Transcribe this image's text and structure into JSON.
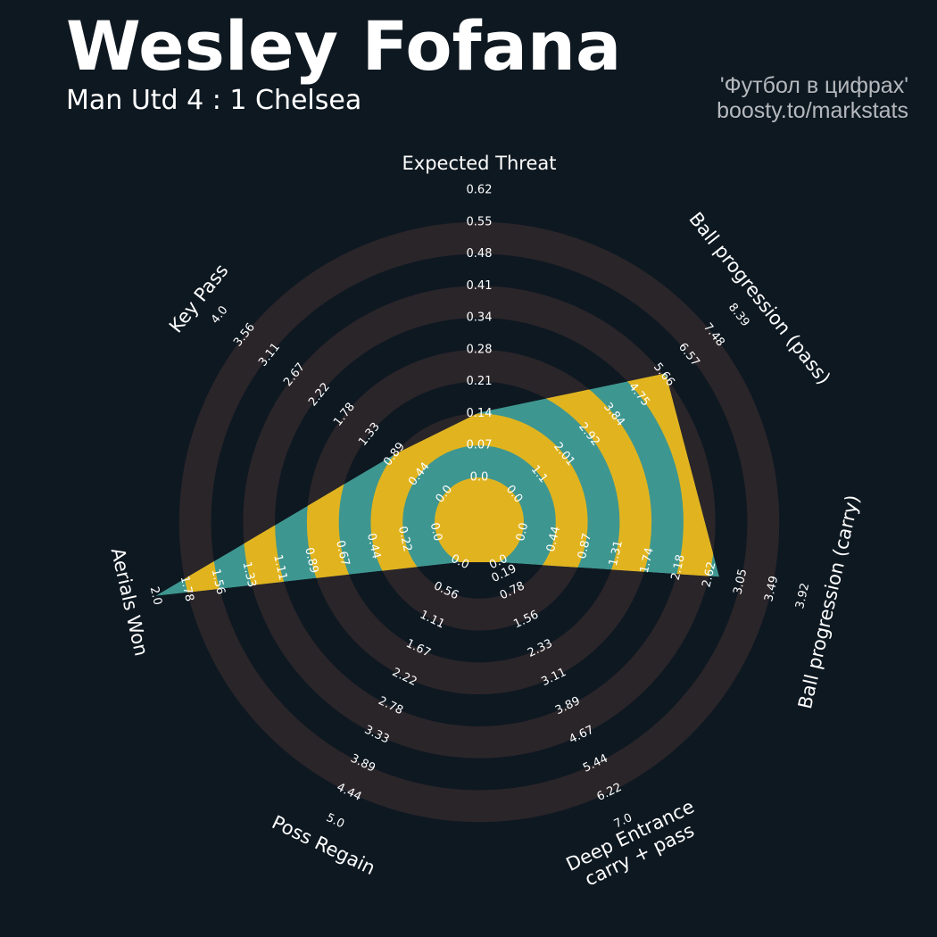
{
  "header": {
    "title": "Wesley Fofana",
    "subtitle": "Man Utd 4 : 1 Chelsea",
    "credit_line1": "'Футбол в цифрах'",
    "credit_line2": "boosty.to/markstats"
  },
  "chart_data": {
    "type": "radar",
    "colors": {
      "background": "#0e1821",
      "ring": "#2a2529",
      "fill_teal": "#3e9690",
      "fill_gold": "#e1b41f",
      "text": "#ffffff"
    },
    "axes": [
      {
        "label": "Expected Threat",
        "min": 0.0,
        "max": 0.62,
        "ticks": [
          "0.0",
          "0.07",
          "0.14",
          "0.21",
          "0.28",
          "0.34",
          "0.41",
          "0.48",
          "0.55",
          "0.62"
        ],
        "value": 0.14
      },
      {
        "label": "Ball progression (pass)",
        "min": 0.0,
        "max": 8.39,
        "ticks": [
          "0.0",
          "1.1",
          "2.01",
          "2.92",
          "3.84",
          "4.75",
          "5.66",
          "6.57",
          "7.48",
          "8.39"
        ],
        "value": 5.66
      },
      {
        "label": "Ball progression (carry)",
        "min": 0.0,
        "max": 3.92,
        "ticks": [
          "0.0",
          "0.44",
          "0.87",
          "1.31",
          "1.74",
          "2.18",
          "2.62",
          "3.05",
          "3.49",
          "3.92"
        ],
        "value": 2.75
      },
      {
        "label": "Deep Entrance\ncarry + pass",
        "min": 0.0,
        "max": 7.0,
        "ticks": [
          "0.0",
          "0.19",
          "0.78",
          "1.56",
          "2.33",
          "3.11",
          "3.89",
          "4.67",
          "5.44",
          "6.22",
          "7.0"
        ],
        "tick_layout": "deep",
        "value": 0.0
      },
      {
        "label": "Poss Regain",
        "min": 0.0,
        "max": 5.0,
        "ticks": [
          "0.0",
          "0.56",
          "1.11",
          "1.67",
          "2.22",
          "2.78",
          "3.33",
          "3.89",
          "4.44",
          "5.0"
        ],
        "value": 0.0
      },
      {
        "label": "Aerials Won",
        "min": 0.0,
        "max": 2.0,
        "ticks": [
          "0.0",
          "0.22",
          "0.44",
          "0.67",
          "0.89",
          "1.11",
          "1.33",
          "1.56",
          "1.78",
          "2.0"
        ],
        "value": 2.0
      },
      {
        "label": "Key Pass",
        "min": 0.0,
        "max": 4.0,
        "ticks": [
          "0.0",
          "0.44",
          "0.89",
          "1.33",
          "1.78",
          "2.22",
          "2.67",
          "3.11",
          "3.56",
          "4.0"
        ],
        "value": 0.89
      }
    ]
  }
}
